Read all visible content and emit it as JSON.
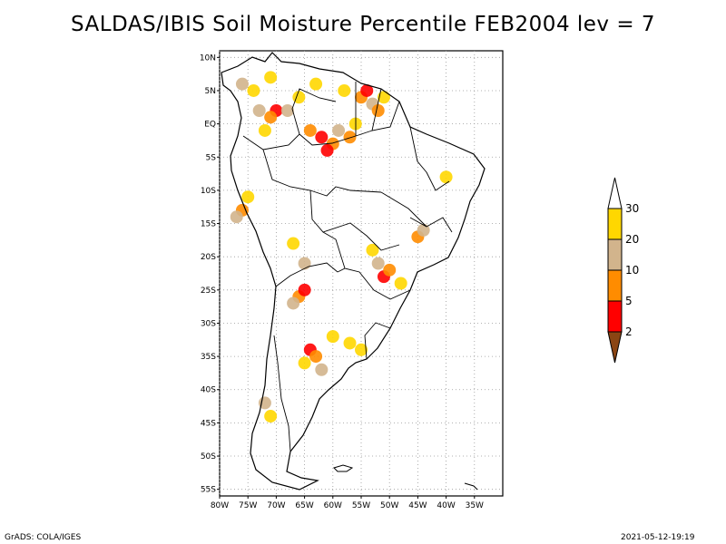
{
  "title": "SALDAS/IBIS Soil Moisture Percentile FEB2004 lev = 7",
  "map": {
    "lon_range": [
      -80,
      -30
    ],
    "lat_range": [
      -56,
      11
    ],
    "lon_ticks": [
      {
        "value": -80,
        "label": "80W"
      },
      {
        "value": -75,
        "label": "75W"
      },
      {
        "value": -70,
        "label": "70W"
      },
      {
        "value": -65,
        "label": "65W"
      },
      {
        "value": -60,
        "label": "60W"
      },
      {
        "value": -55,
        "label": "55W"
      },
      {
        "value": -50,
        "label": "50W"
      },
      {
        "value": -45,
        "label": "45W"
      },
      {
        "value": -40,
        "label": "40W"
      },
      {
        "value": -35,
        "label": "35W"
      }
    ],
    "lat_ticks": [
      {
        "value": 10,
        "label": "10N"
      },
      {
        "value": 5,
        "label": "5N"
      },
      {
        "value": 0,
        "label": "EQ"
      },
      {
        "value": -5,
        "label": "5S"
      },
      {
        "value": -10,
        "label": "10S"
      },
      {
        "value": -15,
        "label": "15S"
      },
      {
        "value": -20,
        "label": "20S"
      },
      {
        "value": -25,
        "label": "25S"
      },
      {
        "value": -30,
        "label": "30S"
      },
      {
        "value": -35,
        "label": "35S"
      },
      {
        "value": -40,
        "label": "40S"
      },
      {
        "value": -45,
        "label": "45S"
      },
      {
        "value": -50,
        "label": "50S"
      },
      {
        "value": -55,
        "label": "55S"
      }
    ],
    "colorbar": {
      "levels": [
        "2",
        "5",
        "10",
        "20",
        "30"
      ],
      "colors": [
        "#8b4513",
        "#ff0000",
        "#ff8c00",
        "#d2b48c",
        "#ffd700",
        "#ffffff"
      ]
    },
    "patches": [
      {
        "lon": -76,
        "lat": 6,
        "category": 3
      },
      {
        "lon": -74,
        "lat": 5,
        "category": 4
      },
      {
        "lon": -71,
        "lat": 7,
        "category": 4
      },
      {
        "lon": -73,
        "lat": 2,
        "category": 3
      },
      {
        "lon": -70,
        "lat": 2,
        "category": 1
      },
      {
        "lon": -71,
        "lat": 1,
        "category": 2
      },
      {
        "lon": -68,
        "lat": 2,
        "category": 3
      },
      {
        "lon": -72,
        "lat": -1,
        "category": 4
      },
      {
        "lon": -66,
        "lat": 4,
        "category": 4
      },
      {
        "lon": -64,
        "lat": -1,
        "category": 2
      },
      {
        "lon": -62,
        "lat": -2,
        "category": 1
      },
      {
        "lon": -60,
        "lat": -3,
        "category": 2
      },
      {
        "lon": -61,
        "lat": -4,
        "category": 1
      },
      {
        "lon": -59,
        "lat": -1,
        "category": 3
      },
      {
        "lon": -56,
        "lat": 0,
        "category": 4
      },
      {
        "lon": -55,
        "lat": 4,
        "category": 2
      },
      {
        "lon": -54,
        "lat": 5,
        "category": 1
      },
      {
        "lon": -53,
        "lat": 3,
        "category": 3
      },
      {
        "lon": -52,
        "lat": 2,
        "category": 2
      },
      {
        "lon": -51,
        "lat": 4,
        "category": 4
      },
      {
        "lon": -57,
        "lat": -2,
        "category": 2
      },
      {
        "lon": -58,
        "lat": 5,
        "category": 4
      },
      {
        "lon": -63,
        "lat": 6,
        "category": 4
      },
      {
        "lon": -76,
        "lat": -13,
        "category": 2
      },
      {
        "lon": -75,
        "lat": -11,
        "category": 4
      },
      {
        "lon": -77,
        "lat": -14,
        "category": 3
      },
      {
        "lon": -67,
        "lat": -18,
        "category": 4
      },
      {
        "lon": -65,
        "lat": -21,
        "category": 3
      },
      {
        "lon": -66,
        "lat": -26,
        "category": 2
      },
      {
        "lon": -65,
        "lat": -25,
        "category": 1
      },
      {
        "lon": -67,
        "lat": -27,
        "category": 3
      },
      {
        "lon": -64,
        "lat": -34,
        "category": 1
      },
      {
        "lon": -63,
        "lat": -35,
        "category": 2
      },
      {
        "lon": -65,
        "lat": -36,
        "category": 4
      },
      {
        "lon": -62,
        "lat": -37,
        "category": 3
      },
      {
        "lon": -60,
        "lat": -32,
        "category": 4
      },
      {
        "lon": -57,
        "lat": -33,
        "category": 4
      },
      {
        "lon": -55,
        "lat": -34,
        "category": 4
      },
      {
        "lon": -51,
        "lat": -23,
        "category": 1
      },
      {
        "lon": -50,
        "lat": -22,
        "category": 2
      },
      {
        "lon": -52,
        "lat": -21,
        "category": 3
      },
      {
        "lon": -48,
        "lat": -24,
        "category": 4
      },
      {
        "lon": -45,
        "lat": -17,
        "category": 2
      },
      {
        "lon": -44,
        "lat": -16,
        "category": 3
      },
      {
        "lon": -40,
        "lat": -8,
        "category": 4
      },
      {
        "lon": -53,
        "lat": -19,
        "category": 4
      },
      {
        "lon": -71,
        "lat": -44,
        "category": 4
      },
      {
        "lon": -72,
        "lat": -42,
        "category": 3
      }
    ]
  },
  "footer": {
    "left": "GrADS: COLA/IGES",
    "right": "2021-05-12-19:19"
  }
}
